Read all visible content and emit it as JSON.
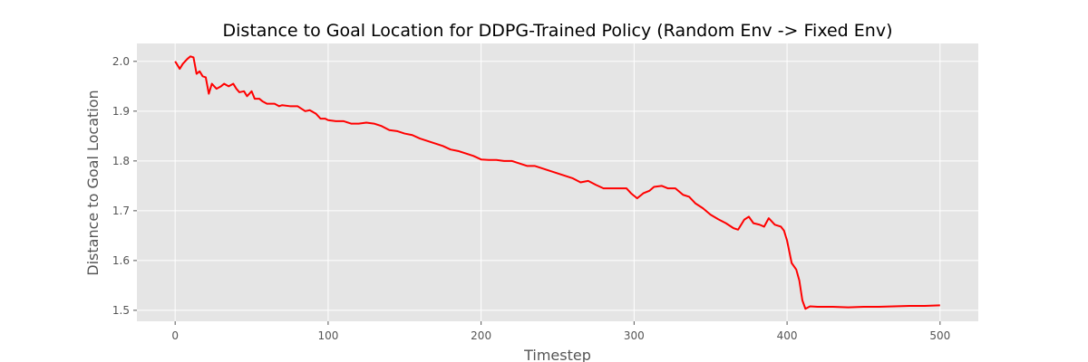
{
  "chart_data": {
    "type": "line",
    "title": "Distance to Goal Location for DDPG-Trained Policy (Random Env -> Fixed Env)",
    "x_label": "Timestep",
    "y_label": "Distance to Goal Location",
    "x": [
      0,
      2,
      3,
      5,
      8,
      10,
      12,
      14,
      16,
      18,
      20,
      22,
      24,
      27,
      30,
      32,
      35,
      38,
      40,
      42,
      45,
      47,
      50,
      52,
      55,
      57,
      60,
      65,
      68,
      70,
      75,
      80,
      85,
      88,
      92,
      95,
      98,
      100,
      105,
      110,
      115,
      120,
      125,
      130,
      135,
      140,
      145,
      150,
      155,
      160,
      165,
      170,
      175,
      180,
      185,
      190,
      195,
      200,
      205,
      210,
      215,
      220,
      225,
      230,
      235,
      240,
      245,
      250,
      255,
      260,
      265,
      270,
      275,
      280,
      285,
      290,
      295,
      298,
      302,
      306,
      310,
      313,
      318,
      322,
      327,
      332,
      336,
      340,
      345,
      350,
      355,
      360,
      365,
      368,
      372,
      375,
      378,
      382,
      385,
      388,
      392,
      396,
      398,
      400,
      403,
      406,
      408,
      410,
      412,
      415,
      420,
      430,
      440,
      450,
      460,
      470,
      480,
      490,
      500
    ],
    "series": [
      {
        "name": "distance",
        "color": "#ff0000",
        "values": [
          2.0,
          1.99,
          1.985,
          1.995,
          2.005,
          2.01,
          2.008,
          1.975,
          1.98,
          1.97,
          1.968,
          1.935,
          1.955,
          1.945,
          1.95,
          1.955,
          1.95,
          1.955,
          1.945,
          1.938,
          1.94,
          1.93,
          1.94,
          1.925,
          1.925,
          1.92,
          1.915,
          1.915,
          1.91,
          1.912,
          1.91,
          1.91,
          1.9,
          1.902,
          1.895,
          1.885,
          1.885,
          1.882,
          1.88,
          1.88,
          1.875,
          1.875,
          1.877,
          1.875,
          1.87,
          1.862,
          1.86,
          1.855,
          1.852,
          1.845,
          1.84,
          1.835,
          1.83,
          1.823,
          1.82,
          1.815,
          1.81,
          1.803,
          1.802,
          1.802,
          1.8,
          1.8,
          1.795,
          1.79,
          1.79,
          1.785,
          1.78,
          1.775,
          1.77,
          1.765,
          1.757,
          1.76,
          1.752,
          1.745,
          1.745,
          1.745,
          1.745,
          1.735,
          1.725,
          1.735,
          1.74,
          1.748,
          1.75,
          1.745,
          1.745,
          1.732,
          1.728,
          1.715,
          1.705,
          1.692,
          1.683,
          1.675,
          1.665,
          1.662,
          1.682,
          1.688,
          1.675,
          1.672,
          1.668,
          1.685,
          1.672,
          1.668,
          1.66,
          1.64,
          1.595,
          1.582,
          1.56,
          1.52,
          1.503,
          1.508,
          1.507,
          1.507,
          1.506,
          1.507,
          1.507,
          1.508,
          1.509,
          1.509,
          1.51
        ]
      }
    ],
    "xlim": [
      -25,
      525
    ],
    "xticks": [
      0,
      100,
      200,
      300,
      400,
      500
    ],
    "ylim": [
      1.478,
      2.036
    ],
    "yticks": [
      {
        "value": 1.5,
        "label": "1.5"
      },
      {
        "value": 1.6,
        "label": "1.6"
      },
      {
        "value": 1.7,
        "label": "1.7"
      },
      {
        "value": 1.8,
        "label": "1.8"
      },
      {
        "value": 1.9,
        "label": "1.9"
      },
      {
        "value": 2.0,
        "label": "2.0"
      }
    ],
    "grid": true
  }
}
